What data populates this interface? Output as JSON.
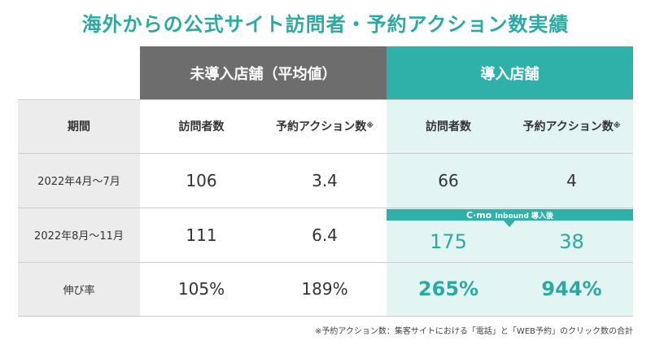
{
  "title": "海外からの公式サイト訪問者・予約アクション数実績",
  "table": {
    "groups": [
      "未導入店舗（平均値）",
      "導入店舗"
    ],
    "header": {
      "period": "期間",
      "columns": [
        {
          "label": "訪問者数"
        },
        {
          "label": "予約アクション数",
          "mark": "※"
        },
        {
          "label": "訪問者数"
        },
        {
          "label": "予約アクション数",
          "mark": "※"
        }
      ]
    },
    "rows": [
      [
        "2022年4月～7月",
        "106",
        "3.4",
        "66",
        "4"
      ],
      [
        "2022年8月～11月",
        "111",
        "6.4",
        "175",
        "38"
      ],
      [
        "伸び率",
        "105%",
        "189%",
        "265%",
        "944%"
      ]
    ],
    "banner": {
      "logo": "C·mo",
      "text": "Inbound 導入後"
    }
  },
  "footnote": "※予約アクション数：集客サイトにおける「電話」と「WEB予約」のクリック数の合計"
}
